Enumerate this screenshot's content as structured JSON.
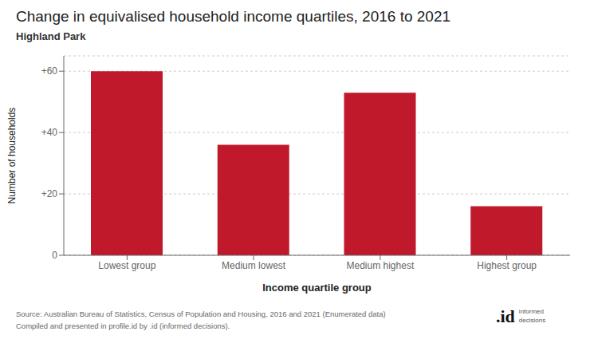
{
  "chart_data": {
    "type": "bar",
    "title": "Change in equivalised household income quartiles, 2016 to 2021",
    "subtitle": "Highland Park",
    "categories": [
      "Lowest group",
      "Medium lowest",
      "Medium highest",
      "Highest group"
    ],
    "values": [
      60,
      36,
      53,
      16
    ],
    "color": "#c0192c",
    "xlabel": "Income quartile group",
    "ylabel": "Number of households",
    "ylim": [
      0,
      65
    ],
    "yticks": [
      0,
      {
        "value": 20,
        "label": "+20"
      },
      {
        "value": 40,
        "label": "+40"
      },
      {
        "value": 60,
        "label": "+60"
      }
    ],
    "grid": true,
    "annotations": [
      "Source: Australian Bureau of Statistics, Census of Population and Housing, 2016 and 2021 (Enumerated data)",
      "Compiled and presented in profile.id by .id (informed decisions).",
      ".id",
      "informed",
      "decisions"
    ]
  }
}
